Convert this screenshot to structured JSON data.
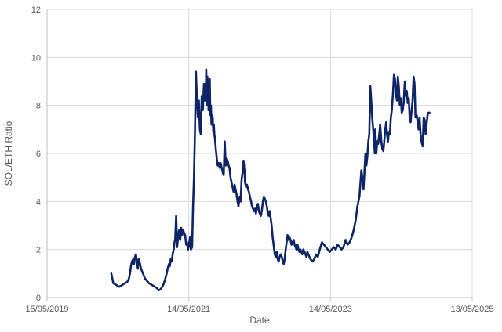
{
  "chart_data": {
    "type": "line",
    "title": "",
    "xlabel": "Date",
    "ylabel": "SOL/ETH Ratio",
    "ylim": [
      0,
      12
    ],
    "xlim": [
      "2019-05-15",
      "2025-05-13"
    ],
    "y_ticks": [
      0,
      2,
      4,
      6,
      8,
      10,
      12
    ],
    "x_ticks": [
      {
        "date": "2019-05-15",
        "label": "15/05/2019"
      },
      {
        "date": "2021-05-14",
        "label": "14/05/2021"
      },
      {
        "date": "2023-05-14",
        "label": "14/05/2023"
      },
      {
        "date": "2025-05-13",
        "label": "13/05/2025"
      }
    ],
    "grid": true,
    "legend": "none",
    "colors": {
      "line": "#0d2466",
      "grid": "#d9d9d9",
      "text": "#595959"
    },
    "series": [
      {
        "x": [
          "2020-04-10",
          "2020-04-15",
          "2020-04-20",
          "2020-04-30",
          "2020-05-10",
          "2020-05-20",
          "2020-06-01",
          "2020-06-10",
          "2020-06-20",
          "2020-06-30",
          "2020-07-05",
          "2020-07-10",
          "2020-07-15",
          "2020-07-20",
          "2020-07-25",
          "2020-08-01",
          "2020-08-05",
          "2020-08-10",
          "2020-08-15",
          "2020-08-20",
          "2020-08-25",
          "2020-08-30",
          "2020-09-05",
          "2020-09-10",
          "2020-09-15",
          "2020-09-20",
          "2020-09-30",
          "2020-10-10",
          "2020-10-20",
          "2020-10-31",
          "2020-11-10",
          "2020-11-20",
          "2020-11-30",
          "2020-12-10",
          "2020-12-20",
          "2021-01-01",
          "2021-01-10",
          "2021-01-20",
          "2021-01-25",
          "2021-02-01",
          "2021-02-05",
          "2021-02-10",
          "2021-02-15",
          "2021-02-20",
          "2021-02-25",
          "2021-03-01",
          "2021-03-05",
          "2021-03-10",
          "2021-03-15",
          "2021-03-20",
          "2021-03-25",
          "2021-03-31",
          "2021-04-05",
          "2021-04-10",
          "2021-04-15",
          "2021-04-20",
          "2021-04-25",
          "2021-05-01",
          "2021-05-05",
          "2021-05-10",
          "2021-05-15",
          "2021-05-20",
          "2021-05-25",
          "2021-05-31",
          "2021-06-05",
          "2021-06-10",
          "2021-06-15",
          "2021-06-20",
          "2021-06-25",
          "2021-06-30",
          "2021-07-05",
          "2021-07-10",
          "2021-07-15",
          "2021-07-20",
          "2021-07-25",
          "2021-07-31",
          "2021-08-05",
          "2021-08-10",
          "2021-08-12",
          "2021-08-15",
          "2021-08-18",
          "2021-08-21",
          "2021-08-24",
          "2021-08-27",
          "2021-08-30",
          "2021-09-02",
          "2021-09-05",
          "2021-09-08",
          "2021-09-11",
          "2021-09-14",
          "2021-09-17",
          "2021-09-20",
          "2021-09-23",
          "2021-09-26",
          "2021-09-30",
          "2021-10-05",
          "2021-10-10",
          "2021-10-15",
          "2021-10-20",
          "2021-10-25",
          "2021-10-31",
          "2021-11-05",
          "2021-11-10",
          "2021-11-15",
          "2021-11-20",
          "2021-11-25",
          "2021-11-30",
          "2021-12-05",
          "2021-12-10",
          "2021-12-15",
          "2021-12-20",
          "2021-12-25",
          "2021-12-31",
          "2022-01-05",
          "2022-01-10",
          "2022-01-15",
          "2022-01-20",
          "2022-01-25",
          "2022-01-31",
          "2022-02-05",
          "2022-02-10",
          "2022-02-15",
          "2022-02-20",
          "2022-02-25",
          "2022-02-28",
          "2022-03-05",
          "2022-03-10",
          "2022-03-15",
          "2022-03-20",
          "2022-03-25",
          "2022-03-31",
          "2022-04-05",
          "2022-04-10",
          "2022-04-15",
          "2022-04-20",
          "2022-04-25",
          "2022-04-30",
          "2022-05-05",
          "2022-05-10",
          "2022-05-15",
          "2022-05-20",
          "2022-05-25",
          "2022-05-31",
          "2022-06-05",
          "2022-06-10",
          "2022-06-15",
          "2022-06-20",
          "2022-06-25",
          "2022-06-30",
          "2022-07-05",
          "2022-07-10",
          "2022-07-15",
          "2022-07-20",
          "2022-07-25",
          "2022-07-31",
          "2022-08-05",
          "2022-08-10",
          "2022-08-15",
          "2022-08-20",
          "2022-08-25",
          "2022-08-31",
          "2022-09-05",
          "2022-09-10",
          "2022-09-15",
          "2022-09-20",
          "2022-09-25",
          "2022-09-30",
          "2022-10-05",
          "2022-10-10",
          "2022-10-15",
          "2022-10-20",
          "2022-10-25",
          "2022-10-31",
          "2022-11-05",
          "2022-11-10",
          "2022-11-15",
          "2022-11-20",
          "2022-11-25",
          "2022-11-30",
          "2022-12-05",
          "2022-12-10",
          "2022-12-15",
          "2022-12-20",
          "2022-12-25",
          "2022-12-31",
          "2023-01-05",
          "2023-01-10",
          "2023-01-15",
          "2023-01-20",
          "2023-01-25",
          "2023-01-31",
          "2023-02-10",
          "2023-02-20",
          "2023-02-28",
          "2023-03-10",
          "2023-03-20",
          "2023-03-31",
          "2023-04-10",
          "2023-04-20",
          "2023-04-30",
          "2023-05-10",
          "2023-05-20",
          "2023-05-31",
          "2023-06-10",
          "2023-06-20",
          "2023-06-30",
          "2023-07-10",
          "2023-07-20",
          "2023-07-31",
          "2023-08-10",
          "2023-08-20",
          "2023-08-31",
          "2023-09-10",
          "2023-09-20",
          "2023-09-30",
          "2023-10-10",
          "2023-10-20",
          "2023-10-25",
          "2023-10-31",
          "2023-11-05",
          "2023-11-10",
          "2023-11-15",
          "2023-11-20",
          "2023-11-25",
          "2023-11-30",
          "2023-12-05",
          "2023-12-10",
          "2023-12-15",
          "2023-12-20",
          "2023-12-25",
          "2023-12-28",
          "2023-12-31",
          "2024-01-05",
          "2024-01-10",
          "2024-01-15",
          "2024-01-20",
          "2024-01-25",
          "2024-01-31",
          "2024-02-05",
          "2024-02-10",
          "2024-02-15",
          "2024-02-20",
          "2024-02-25",
          "2024-02-29",
          "2024-03-05",
          "2024-03-10",
          "2024-03-15",
          "2024-03-20",
          "2024-03-25",
          "2024-03-31",
          "2024-04-05",
          "2024-04-10",
          "2024-04-15",
          "2024-04-20",
          "2024-04-25",
          "2024-04-30",
          "2024-05-05",
          "2024-05-10",
          "2024-05-15",
          "2024-05-20",
          "2024-05-25",
          "2024-05-31",
          "2024-06-05",
          "2024-06-10",
          "2024-06-15",
          "2024-06-20",
          "2024-06-25",
          "2024-06-30",
          "2024-07-05",
          "2024-07-10",
          "2024-07-15",
          "2024-07-20",
          "2024-07-25",
          "2024-07-31",
          "2024-08-05",
          "2024-08-10",
          "2024-08-15",
          "2024-08-20",
          "2024-08-25",
          "2024-08-31",
          "2024-09-05",
          "2024-09-10",
          "2024-09-15",
          "2024-09-20",
          "2024-09-25",
          "2024-09-30",
          "2024-10-05"
        ],
        "y": [
          1.0,
          0.8,
          0.6,
          0.55,
          0.5,
          0.45,
          0.5,
          0.55,
          0.6,
          0.65,
          0.7,
          0.8,
          1.0,
          1.3,
          1.5,
          1.6,
          1.4,
          1.7,
          1.8,
          1.5,
          1.2,
          1.6,
          1.4,
          1.2,
          1.1,
          1.0,
          0.8,
          0.7,
          0.6,
          0.55,
          0.5,
          0.45,
          0.4,
          0.3,
          0.35,
          0.5,
          0.7,
          1.0,
          1.2,
          1.4,
          1.3,
          1.6,
          1.5,
          1.8,
          2.0,
          2.3,
          2.4,
          3.4,
          2.1,
          2.5,
          2.8,
          2.4,
          2.9,
          2.6,
          2.8,
          2.7,
          2.6,
          2.2,
          2.3,
          2.0,
          2.2,
          2.5,
          2.0,
          2.1,
          3.8,
          5.0,
          7.0,
          9.4,
          8.2,
          7.5,
          8.2,
          7.0,
          6.8,
          8.4,
          7.8,
          8.9,
          8.2,
          8.5,
          9.5,
          8.0,
          9.2,
          8.7,
          7.8,
          8.3,
          9.1,
          7.6,
          8.0,
          7.2,
          7.6,
          7.5,
          6.9,
          7.2,
          6.8,
          6.6,
          6.2,
          5.8,
          5.5,
          5.6,
          5.4,
          5.6,
          5.4,
          5.2,
          5.1,
          6.5,
          5.5,
          5.8,
          5.7,
          5.5,
          5.4,
          5.0,
          4.8,
          4.6,
          4.4,
          4.7,
          4.5,
          4.3,
          4.0,
          3.8,
          4.2,
          4.0,
          4.9,
          5.2,
          5.7,
          5.3,
          4.8,
          4.6,
          4.7,
          4.5,
          4.4,
          4.2,
          4.0,
          3.8,
          3.7,
          3.6,
          3.7,
          3.5,
          3.8,
          3.9,
          3.6,
          3.5,
          3.4,
          3.6,
          4.0,
          4.2,
          4.1,
          4.0,
          3.8,
          3.5,
          3.4,
          3.6,
          3.3,
          3.0,
          2.5,
          2.2,
          1.8,
          1.7,
          1.9,
          1.6,
          1.5,
          1.7,
          1.8,
          1.7,
          1.5,
          1.4,
          1.6,
          2.0,
          2.3,
          2.6,
          2.4,
          2.5,
          2.4,
          2.2,
          2.3,
          2.4,
          2.2,
          2.1,
          2.0,
          2.2,
          2.0,
          1.9,
          2.0,
          1.9,
          1.8,
          2.0,
          1.9,
          1.8,
          1.7,
          1.9,
          1.8,
          1.7,
          1.6,
          1.5,
          1.6,
          1.8,
          1.7,
          2.0,
          2.3,
          2.2,
          2.1,
          2.0,
          1.9,
          2.0,
          2.1,
          2.0,
          2.2,
          2.1,
          2.0,
          2.1,
          2.4,
          2.2,
          2.3,
          2.5,
          2.8,
          3.2,
          3.8,
          4.2,
          5.3,
          5.0,
          4.5,
          5.2,
          6.0,
          5.5,
          5.9,
          6.5,
          6.8,
          8.8,
          8.2,
          7.5,
          7.0,
          6.5,
          6.0,
          7.0,
          6.0,
          6.5,
          6.4,
          6.8,
          7.2,
          6.5,
          6.2,
          6.1,
          6.5,
          7.0,
          7.3,
          6.8,
          6.5,
          6.9,
          6.8,
          7.5,
          7.8,
          8.5,
          9.3,
          9.1,
          8.5,
          8.2,
          9.2,
          8.8,
          8.0,
          8.3,
          7.7,
          7.8,
          8.1,
          9.0,
          8.4,
          8.6,
          8.1,
          8.3,
          7.5,
          7.3,
          7.8,
          8.2,
          9.2,
          8.9,
          7.5,
          7.6,
          7.3,
          7.0,
          7.5,
          6.8,
          6.5,
          6.3,
          7.5,
          7.4,
          6.8,
          7.2,
          7.6,
          7.7,
          7.7
        ]
      }
    ]
  }
}
